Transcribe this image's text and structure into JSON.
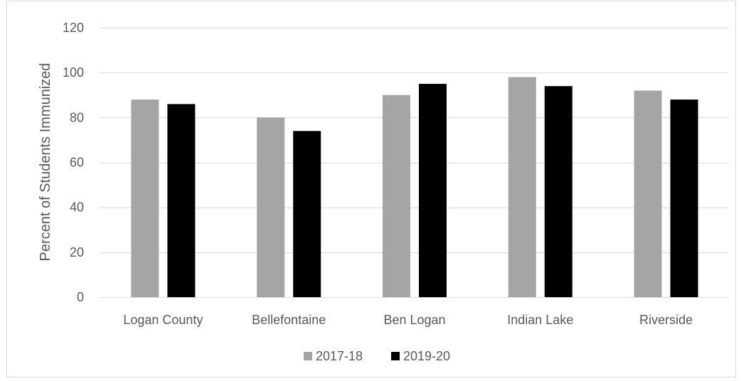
{
  "chart_data": {
    "type": "bar",
    "title": "",
    "xlabel": "",
    "ylabel": "Percent of Students Immunized",
    "ylim": [
      0,
      120
    ],
    "yticks": [
      0,
      20,
      40,
      60,
      80,
      100,
      120
    ],
    "grid": true,
    "legend_position": "bottom",
    "categories": [
      "Logan County",
      "Bellefontaine",
      "Ben Logan",
      "Indian Lake",
      "Riverside"
    ],
    "series": [
      {
        "name": "2017-18",
        "color": "#a5a5a5",
        "values": [
          88,
          80,
          90,
          98,
          92
        ]
      },
      {
        "name": "2019-20",
        "color": "#000000",
        "values": [
          86,
          74,
          95,
          94,
          88
        ]
      }
    ]
  }
}
